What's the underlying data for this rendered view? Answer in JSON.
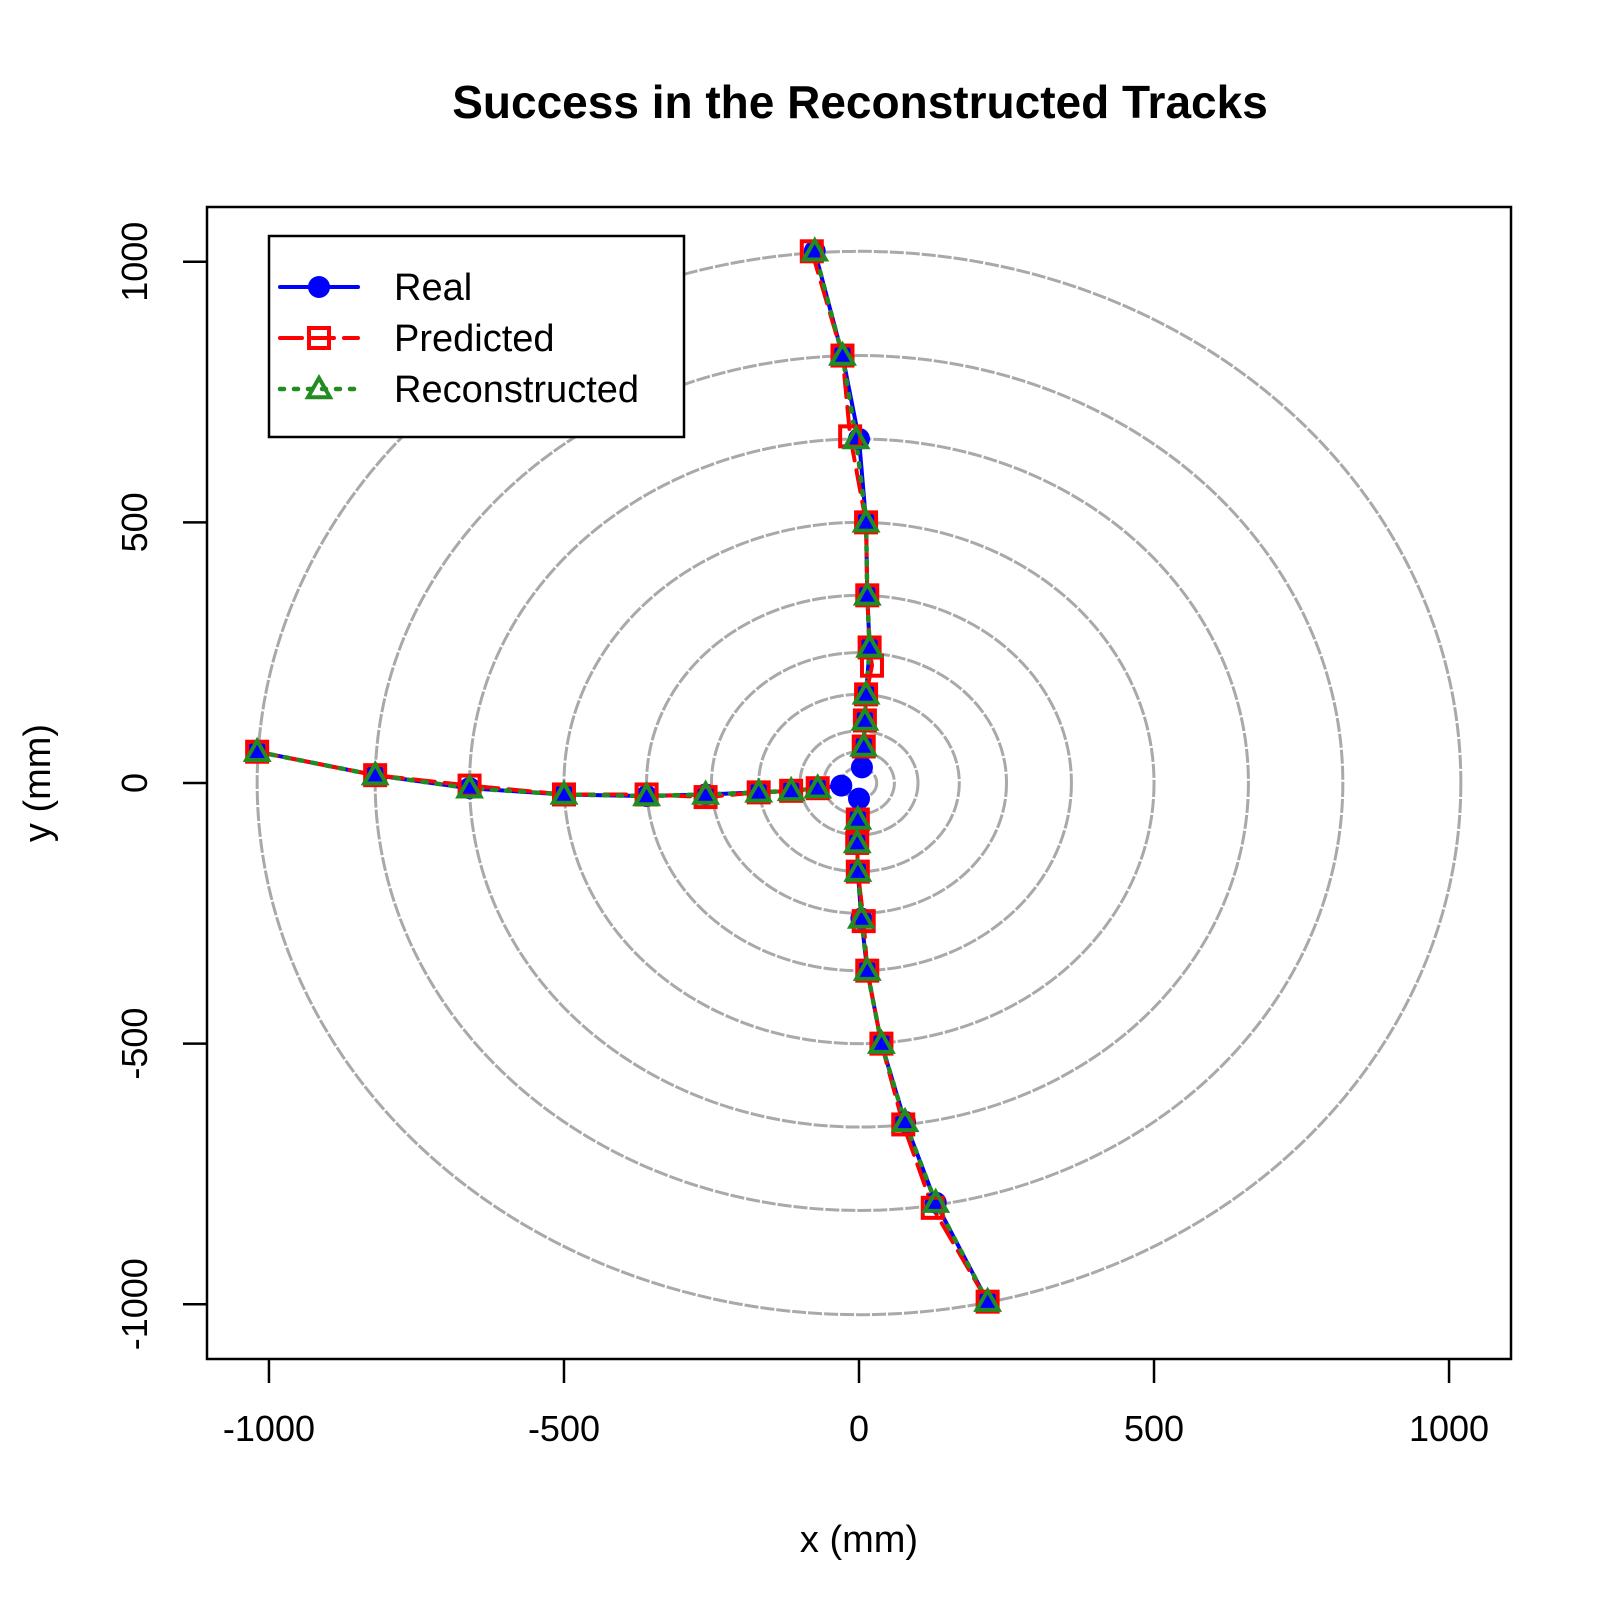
{
  "chart_data": {
    "type": "line",
    "title": "Success in the Reconstructed Tracks",
    "xlabel": "x (mm)",
    "ylabel": "y (mm)",
    "xlim": [
      -1105,
      1105
    ],
    "ylim": [
      -1105,
      1105
    ],
    "xticks": [
      -1000,
      -500,
      0,
      500,
      1000
    ],
    "yticks": [
      -1000,
      -500,
      0,
      500,
      1000
    ],
    "xtick_labels": [
      "-1000",
      "-500",
      "0",
      "500",
      "1000"
    ],
    "ytick_labels": [
      "-1000",
      "-500",
      "0",
      "500",
      "1000"
    ],
    "legend_position": "top-left",
    "detector_rings": [
      30,
      60,
      100,
      170,
      250,
      360,
      500,
      660,
      820,
      1020
    ],
    "series": [
      {
        "name": "Real",
        "color": "#0000ff",
        "marker": "circle",
        "line": "solid",
        "tracks": [
          [
            [
              -30,
              -5
            ],
            [
              -70,
              -10
            ],
            [
              -115,
              -15
            ],
            [
              -170,
              -18
            ],
            [
              -260,
              -22
            ],
            [
              -360,
              -25
            ],
            [
              -500,
              -22
            ],
            [
              -660,
              -10
            ],
            [
              -820,
              15
            ],
            [
              -1020,
              60
            ]
          ],
          [
            [
              5,
              30
            ],
            [
              8,
              70
            ],
            [
              10,
              120
            ],
            [
              12,
              170
            ],
            [
              18,
              260
            ],
            [
              14,
              360
            ],
            [
              12,
              500
            ],
            [
              0,
              660
            ],
            [
              -28,
              820
            ],
            [
              -75,
              1020
            ]
          ],
          [
            [
              0,
              -30
            ],
            [
              -2,
              -70
            ],
            [
              -3,
              -115
            ],
            [
              -2,
              -170
            ],
            [
              4,
              -260
            ],
            [
              14,
              -360
            ],
            [
              38,
              -500
            ],
            [
              78,
              -650
            ],
            [
              130,
              -805
            ],
            [
              218,
              -995
            ]
          ]
        ]
      },
      {
        "name": "Predicted",
        "color": "#ff0000",
        "marker": "square",
        "line": "dashed",
        "tracks": [
          [
            [
              -70,
              -10
            ],
            [
              -115,
              -15
            ],
            [
              -170,
              -18
            ],
            [
              -260,
              -27
            ],
            [
              -360,
              -22
            ],
            [
              -500,
              -22
            ],
            [
              -660,
              -5
            ],
            [
              -820,
              15
            ],
            [
              -1020,
              60
            ]
          ],
          [
            [
              8,
              70
            ],
            [
              10,
              120
            ],
            [
              12,
              170
            ],
            [
              22,
              225
            ],
            [
              18,
              260
            ],
            [
              14,
              360
            ],
            [
              12,
              500
            ],
            [
              -15,
              665
            ],
            [
              -28,
              820
            ],
            [
              -80,
              1020
            ]
          ],
          [
            [
              -2,
              -70
            ],
            [
              -3,
              -115
            ],
            [
              -2,
              -170
            ],
            [
              8,
              -265
            ],
            [
              14,
              -360
            ],
            [
              38,
              -500
            ],
            [
              75,
              -655
            ],
            [
              125,
              -815
            ],
            [
              218,
              -995
            ]
          ]
        ]
      },
      {
        "name": "Reconstructed",
        "color": "#228b22",
        "marker": "triangle",
        "line": "dotted",
        "tracks": [
          [
            [
              -70,
              -10
            ],
            [
              -115,
              -15
            ],
            [
              -170,
              -18
            ],
            [
              -260,
              -22
            ],
            [
              -360,
              -25
            ],
            [
              -500,
              -22
            ],
            [
              -660,
              -10
            ],
            [
              -820,
              15
            ],
            [
              -1020,
              60
            ]
          ],
          [
            [
              8,
              70
            ],
            [
              10,
              120
            ],
            [
              12,
              170
            ],
            [
              18,
              260
            ],
            [
              14,
              360
            ],
            [
              12,
              500
            ],
            [
              -5,
              660
            ],
            [
              -28,
              820
            ],
            [
              -75,
              1020
            ]
          ],
          [
            [
              -2,
              -70
            ],
            [
              -3,
              -115
            ],
            [
              -2,
              -170
            ],
            [
              4,
              -260
            ],
            [
              14,
              -360
            ],
            [
              38,
              -500
            ],
            [
              78,
              -650
            ],
            [
              130,
              -805
            ],
            [
              218,
              -995
            ]
          ]
        ]
      }
    ]
  }
}
